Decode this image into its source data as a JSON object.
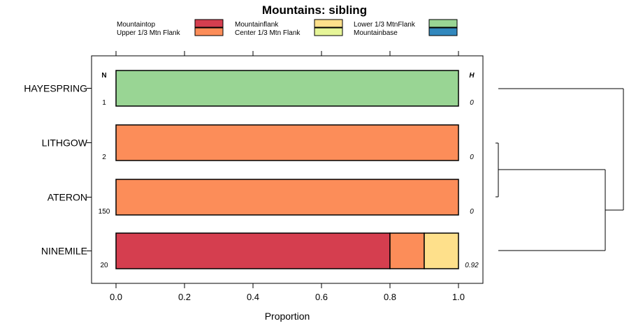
{
  "chart_data": {
    "type": "bar",
    "orientation": "horizontal",
    "stacked": true,
    "title": "Mountains: sibling",
    "xlabel": "Proportion",
    "ylabel": "",
    "xlim": [
      0,
      1
    ],
    "xticks": [
      "0.0",
      "0.2",
      "0.4",
      "0.6",
      "0.8",
      "1.0"
    ],
    "n_header": "N",
    "h_header": "H",
    "legend": [
      {
        "name": "Mountaintop",
        "color": "#d53e4f"
      },
      {
        "name": "Upper 1/3 Mtn Flank",
        "color": "#fc8d59"
      },
      {
        "name": "Mountainflank",
        "color": "#fee08b"
      },
      {
        "name": "Center 1/3 Mtn Flank",
        "color": "#e6f598"
      },
      {
        "name": "Lower 1/3 MtnFlank",
        "color": "#99d594"
      },
      {
        "name": "Mountainbase",
        "color": "#3288bd"
      }
    ],
    "categories": [
      "HAYESPRING",
      "LITHGOW",
      "ATERON",
      "NINEMILE"
    ],
    "n": [
      "1",
      "2",
      "150",
      "20"
    ],
    "h": [
      "0",
      "0",
      "0",
      "0.92"
    ],
    "series": [
      {
        "name": "Mountaintop",
        "values": [
          0,
          0,
          0,
          0.8
        ]
      },
      {
        "name": "Upper 1/3 Mtn Flank",
        "values": [
          0,
          1,
          1,
          0.1
        ]
      },
      {
        "name": "Mountainflank",
        "values": [
          0,
          0,
          0,
          0.1
        ]
      },
      {
        "name": "Center 1/3 Mtn Flank",
        "values": [
          0,
          0,
          0,
          0
        ]
      },
      {
        "name": "Lower 1/3 MtnFlank",
        "values": [
          1,
          0,
          0,
          0
        ]
      },
      {
        "name": "Mountainbase",
        "values": [
          0,
          0,
          0,
          0
        ]
      }
    ],
    "dendrogram": {
      "merges": [
        {
          "left": "LITHGOW",
          "right": "ATERON"
        },
        {
          "left": "LITHGOW+ATERON",
          "right": "NINEMILE"
        },
        {
          "left": "HAYESPRING",
          "right": "LITHGOW+ATERON+NINEMILE"
        }
      ]
    }
  }
}
